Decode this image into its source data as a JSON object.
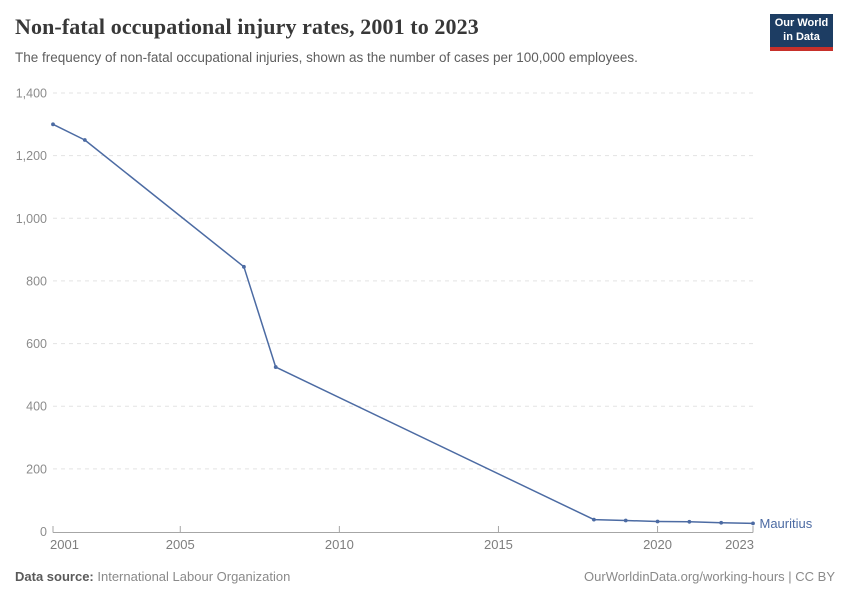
{
  "header": {
    "title": "Non-fatal occupational injury rates, 2001 to 2023",
    "subtitle": "The frequency of non-fatal occupational injuries, shown as the number of cases per 100,000 employees.",
    "logo": {
      "line1": "Our World",
      "line2": "in Data",
      "bg_color": "#1d3d63",
      "accent_color": "#c7302a"
    }
  },
  "chart_data": {
    "type": "line",
    "title": "Non-fatal occupational injury rates, 2001 to 2023",
    "xlabel": "",
    "ylabel": "",
    "xlim": [
      2001,
      2023
    ],
    "ylim": [
      0,
      1400
    ],
    "grid": "horizontal-dashed",
    "legend_position": "end-of-line-label",
    "x_ticks": [
      2001,
      2005,
      2010,
      2015,
      2020,
      2023
    ],
    "y_ticks": [
      0,
      200,
      400,
      600,
      800,
      1000,
      1200,
      1400
    ],
    "y_tick_labels": [
      "0",
      "200",
      "400",
      "600",
      "800",
      "1,000",
      "1,200",
      "1,400"
    ],
    "series": [
      {
        "name": "Mauritius",
        "color": "#4c6ba3",
        "points": [
          [
            2001,
            1300
          ],
          [
            2002,
            1250
          ],
          [
            2007,
            845
          ],
          [
            2008,
            525
          ],
          [
            2018,
            38
          ],
          [
            2019,
            35
          ],
          [
            2020,
            32
          ],
          [
            2021,
            31
          ],
          [
            2022,
            28
          ],
          [
            2023,
            26
          ]
        ]
      }
    ]
  },
  "footer": {
    "source_label": "Data source:",
    "source_value": "International Labour Organization",
    "attribution": "OurWorldinData.org/working-hours | CC BY"
  },
  "colors": {
    "line": "#4c6ba3",
    "gridline": "#e3e3e3",
    "axis": "#a6a6a6",
    "tick_label": "#8c8c8c",
    "x_label": "#7e7e7e"
  }
}
